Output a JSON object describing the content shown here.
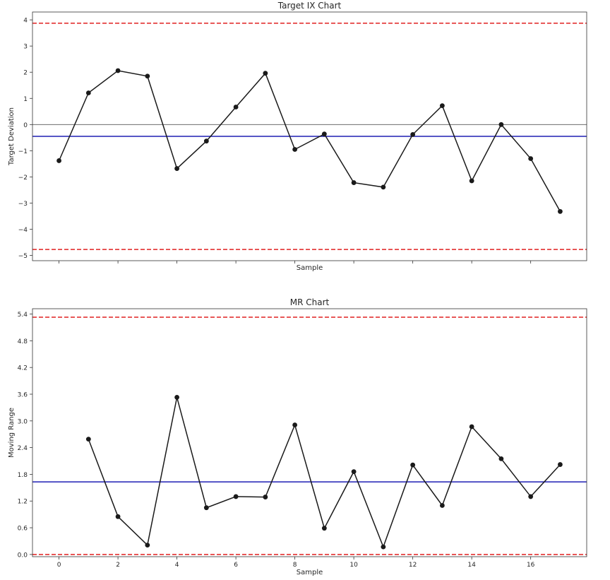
{
  "colors": {
    "data_line": "#1a1a1a",
    "center_line": "#1f1fb4",
    "control_limit": "#e02020",
    "zero_line": "#555555",
    "axes": "#333333"
  },
  "chart_data": [
    {
      "type": "line",
      "title": "Target IX Chart",
      "xlabel": "Sample",
      "ylabel": "Target Deviation",
      "xlim": [
        -0.9,
        17.9
      ],
      "ylim": [
        -5.2,
        4.3
      ],
      "xticks": [
        0,
        2,
        4,
        6,
        8,
        10,
        12,
        14,
        16
      ],
      "show_xtick_labels": false,
      "yticks": [
        -5,
        -4,
        -3,
        -2,
        -1,
        0,
        1,
        2,
        3,
        4
      ],
      "ytick_labels": [
        "−5",
        "−4",
        "−3",
        "−2",
        "−1",
        "0",
        "1",
        "2",
        "3",
        "4"
      ],
      "x": [
        0,
        1,
        2,
        3,
        4,
        5,
        6,
        7,
        8,
        9,
        10,
        11,
        12,
        13,
        14,
        15,
        16,
        17
      ],
      "values": [
        -1.38,
        1.21,
        2.06,
        1.85,
        -1.68,
        -0.63,
        0.67,
        1.96,
        -0.95,
        -0.36,
        -2.22,
        -2.39,
        -0.38,
        0.72,
        -2.15,
        0.0,
        -1.3,
        -3.32
      ],
      "center_line": -0.45,
      "ucl": 3.87,
      "lcl": -4.77,
      "zero_line": 0,
      "grid": false
    },
    {
      "type": "line",
      "title": "MR Chart",
      "xlabel": "Sample",
      "ylabel": "Moving Range",
      "xlim": [
        -0.9,
        17.9
      ],
      "ylim": [
        -0.05,
        5.52
      ],
      "xticks": [
        0,
        2,
        4,
        6,
        8,
        10,
        12,
        14,
        16
      ],
      "show_xtick_labels": true,
      "xtick_labels": [
        "0",
        "2",
        "4",
        "6",
        "8",
        "10",
        "12",
        "14",
        "16"
      ],
      "yticks": [
        0.0,
        0.6,
        1.2,
        1.8,
        2.4,
        3.0,
        3.6,
        4.2,
        4.8,
        5.4
      ],
      "ytick_labels": [
        "0.0",
        "0.6",
        "1.2",
        "1.8",
        "2.4",
        "3.0",
        "3.6",
        "4.2",
        "4.8",
        "5.4"
      ],
      "x": [
        1,
        2,
        3,
        4,
        5,
        6,
        7,
        8,
        9,
        10,
        11,
        12,
        13,
        14,
        15,
        16,
        17
      ],
      "values": [
        2.59,
        0.85,
        0.21,
        3.53,
        1.05,
        1.3,
        1.29,
        2.91,
        0.59,
        1.86,
        0.17,
        2.01,
        1.1,
        2.87,
        2.15,
        1.3,
        2.02
      ],
      "center_line": 1.63,
      "ucl": 5.33,
      "lcl": 0.0,
      "grid": false
    }
  ]
}
